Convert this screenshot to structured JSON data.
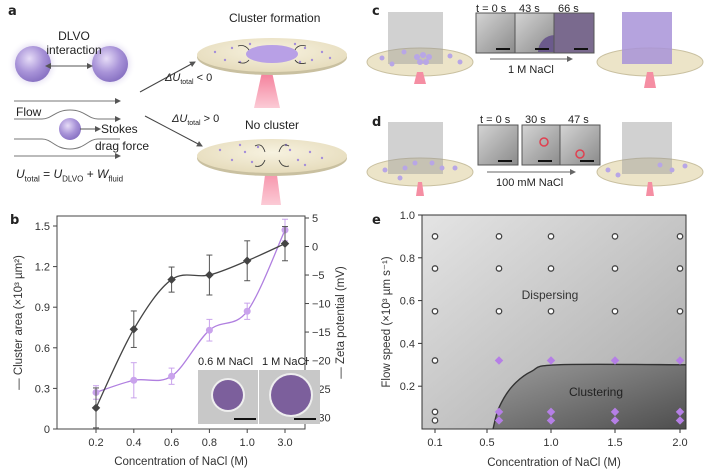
{
  "panels": {
    "a": {
      "label": "a",
      "dlvo_line1": "DLVO",
      "dlvo_line2": "interaction",
      "flow": "Flow",
      "stokes": "Stokes",
      "drag": "drag force",
      "equation": {
        "U": "U",
        "total": "total",
        "eq": " = ",
        "U2": "U",
        "dlvo": "DLVO",
        "plus": " + ",
        "W": "W",
        "fluid": "fluid"
      },
      "cond_neg": {
        "delta": "ΔU",
        "sub": "total",
        "rel": " < 0"
      },
      "cond_pos": {
        "delta": "ΔU",
        "sub": "total",
        "rel": " > 0"
      },
      "cluster_formation": "Cluster formation",
      "no_cluster": "No cluster"
    },
    "c": {
      "label": "c",
      "times": [
        "t = 0 s",
        "43 s",
        "66 s"
      ],
      "condition": "1 M NaCl"
    },
    "d": {
      "label": "d",
      "times": [
        "t = 0 s",
        "30 s",
        "47 s"
      ],
      "condition": "100 mM NaCl"
    },
    "b": {
      "label": "b",
      "inset_left": "0.6 M NaCl",
      "inset_right": "1 M NaCl"
    },
    "e": {
      "label": "e",
      "region_dispersing": "Dispersing",
      "region_clustering": "Clustering"
    }
  },
  "colors": {
    "purple": "#b07fe0",
    "dark": "#444444",
    "beam": "#f48aa0",
    "disk": "#efe8d0"
  },
  "chart_data": [
    {
      "id": "b",
      "type": "line",
      "title": "",
      "xlabel": "Concentration of NaCl (M)",
      "ylabel": "Cluster area (×10³ µm²)",
      "y2label": "Zeta potential (mV)",
      "categories": [
        "0.2",
        "0.4",
        "0.6",
        "0.8",
        "1.0",
        "3.0"
      ],
      "ylim": [
        0,
        1.5
      ],
      "y2lim": [
        -32,
        5
      ],
      "yticks": [
        "0",
        "0.3",
        "0.6",
        "0.9",
        "1.2",
        "1.5"
      ],
      "y2ticks": [
        "5",
        "0",
        "−5",
        "−10",
        "−15",
        "−20",
        "−25",
        "−30"
      ],
      "series": [
        {
          "name": "Cluster area",
          "axis": "left",
          "color": "#b07fe0",
          "values": [
            0.27,
            0.36,
            0.39,
            0.73,
            0.87,
            1.47
          ],
          "err": [
            0.05,
            0.13,
            0.06,
            0.08,
            0.06,
            0.08
          ]
        },
        {
          "name": "Zeta potential",
          "axis": "right",
          "color": "#444444",
          "values": [
            -28.3,
            -14.5,
            -5.8,
            -5.0,
            -2.5,
            0.5
          ],
          "err": [
            3.5,
            3.2,
            2.2,
            3.5,
            3.5,
            3.0
          ]
        }
      ]
    },
    {
      "id": "e",
      "type": "scatter",
      "title": "",
      "xlabel": "Concentration of NaCl (M)",
      "ylabel": "Flow speed (×10³ µm s⁻¹)",
      "xlim": [
        0,
        2.05
      ],
      "ylim": [
        0,
        1.0
      ],
      "xticks": [
        "0.1",
        "0.5",
        "1.0",
        "1.5",
        "2.0"
      ],
      "yticks": [
        "0.2",
        "0.4",
        "0.6",
        "0.8",
        "1.0"
      ],
      "series": [
        {
          "name": "Dispersing",
          "marker": "open-circle",
          "points": [
            [
              0.1,
              0.9
            ],
            [
              0.6,
              0.9
            ],
            [
              1.0,
              0.9
            ],
            [
              1.5,
              0.9
            ],
            [
              2.0,
              0.9
            ],
            [
              0.1,
              0.75
            ],
            [
              0.6,
              0.75
            ],
            [
              1.0,
              0.75
            ],
            [
              1.5,
              0.75
            ],
            [
              2.0,
              0.75
            ],
            [
              0.1,
              0.55
            ],
            [
              0.6,
              0.55
            ],
            [
              1.0,
              0.55
            ],
            [
              1.5,
              0.55
            ],
            [
              2.0,
              0.55
            ],
            [
              0.1,
              0.32
            ],
            [
              0.1,
              0.08
            ],
            [
              0.1,
              0.04
            ]
          ]
        },
        {
          "name": "Clustering",
          "marker": "purple-diamond",
          "points": [
            [
              0.6,
              0.32
            ],
            [
              1.0,
              0.32
            ],
            [
              1.5,
              0.32
            ],
            [
              2.0,
              0.32
            ],
            [
              0.6,
              0.08
            ],
            [
              1.0,
              0.08
            ],
            [
              1.5,
              0.08
            ],
            [
              2.0,
              0.08
            ],
            [
              0.6,
              0.04
            ],
            [
              1.0,
              0.04
            ],
            [
              1.5,
              0.04
            ],
            [
              2.0,
              0.04
            ]
          ]
        }
      ],
      "boundary": [
        [
          0.55,
          0
        ],
        [
          0.6,
          0.1
        ],
        [
          0.7,
          0.2
        ],
        [
          0.85,
          0.27
        ],
        [
          1.05,
          0.3
        ],
        [
          2.05,
          0.3
        ]
      ]
    }
  ]
}
